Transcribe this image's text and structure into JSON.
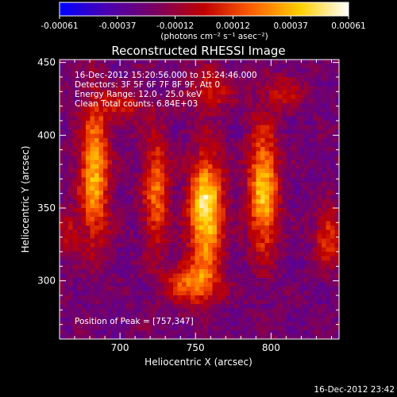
{
  "chart_data": {
    "type": "heatmap",
    "title": "Reconstructed RHESSI Image",
    "xlabel": "Heliocentric X (arcsec)",
    "ylabel": "Heliocentric Y (arcsec)",
    "xlim": [
      660,
      845
    ],
    "ylim": [
      260,
      452
    ],
    "x_ticks": [
      "700",
      "750",
      "800"
    ],
    "y_ticks": [
      "300",
      "350",
      "400",
      "450"
    ],
    "colorbar": {
      "min": -0.00061,
      "max": 0.00061,
      "tick_labels": [
        "-0.00061",
        "-0.00037",
        "-0.00012",
        "0.00012",
        "0.00037",
        "0.00061"
      ],
      "units_label": "(photons cm⁻² s⁻¹ asec⁻²)",
      "colormap": [
        "#0000ff",
        "#4b00b0",
        "#7a0060",
        "#c00000",
        "#ff6000",
        "#ffd000",
        "#ffffff"
      ]
    },
    "annotations": [
      "16-Dec-2012 15:20:56.000 to 15:24:46.000",
      "Detectors: 3F 5F 6F 7F 8F 9F, Att 0",
      "Energy Range: 12.0 - 25.0 keV",
      "Clean     Total counts: 6.84E+03"
    ],
    "peak_label": "Position of Peak = [757,347]",
    "peak": {
      "x": 757,
      "y": 347
    },
    "timestamp": "16-Dec-2012 23:42",
    "sources": [
      {
        "x": 757,
        "y": 348,
        "sx": 8,
        "sy": 28,
        "amp": 1.0
      },
      {
        "x": 795,
        "y": 362,
        "sx": 7,
        "sy": 30,
        "amp": 0.85
      },
      {
        "x": 683,
        "y": 375,
        "sx": 7,
        "sy": 34,
        "amp": 0.8
      },
      {
        "x": 724,
        "y": 362,
        "sx": 6,
        "sy": 28,
        "amp": 0.6
      },
      {
        "x": 748,
        "y": 298,
        "sx": 12,
        "sy": 10,
        "amp": 0.6
      },
      {
        "x": 838,
        "y": 330,
        "sx": 6,
        "sy": 14,
        "amp": 0.5
      },
      {
        "x": 703,
        "y": 420,
        "sx": 10,
        "sy": 8,
        "amp": 0.35
      },
      {
        "x": 760,
        "y": 432,
        "sx": 10,
        "sy": 10,
        "amp": 0.4
      },
      {
        "x": 808,
        "y": 430,
        "sx": 10,
        "sy": 8,
        "amp": 0.3
      },
      {
        "x": 665,
        "y": 332,
        "sx": 5,
        "sy": 12,
        "amp": 0.3
      }
    ]
  }
}
